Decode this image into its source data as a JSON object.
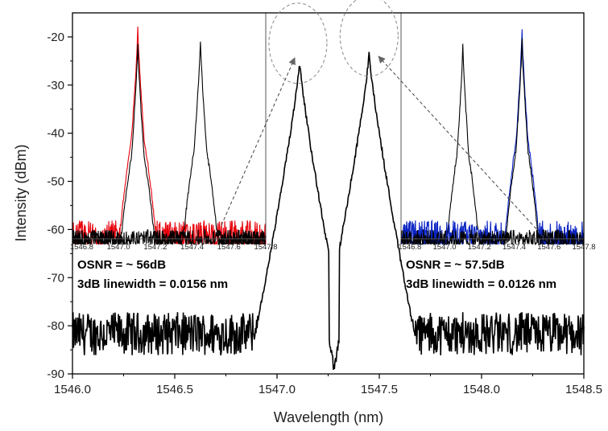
{
  "chart_data": {
    "type": "line",
    "xlabel": "Wavelength (nm)",
    "ylabel": "Intensity (dBm)",
    "xlim": [
      1546.0,
      1548.5
    ],
    "ylim": [
      -90,
      -15
    ],
    "xticks": [
      "1546.0",
      "1546.5",
      "1547.0",
      "1547.5",
      "1548.0",
      "1548.5"
    ],
    "yticks": [
      "-20",
      "-30",
      "-40",
      "-50",
      "-60",
      "-70",
      "-80",
      "-90"
    ],
    "grid": false,
    "noise_floor_dBm": -83,
    "series": [
      {
        "color": "#000000",
        "peaks": [
          {
            "x": 1547.11,
            "y": -25
          },
          {
            "x": 1547.45,
            "y": -23.5
          }
        ],
        "dip": {
          "x": 1547.28,
          "y": -89
        }
      }
    ],
    "insets": [
      {
        "xticks": [
          "1546.8",
          "1547.0",
          "1547.2",
          "1547.4",
          "1547.6",
          "1547.8"
        ],
        "xlim": [
          1546.75,
          1547.8
        ],
        "peaks": [
          {
            "x": 1547.105,
            "y": -18,
            "color": "#e8000b"
          },
          {
            "x": 1547.105,
            "y": -21.5,
            "color": "#000000"
          },
          {
            "x": 1547.445,
            "y": -20.5,
            "color": "#000000"
          }
        ],
        "annotation_lines": [
          "OSNR = ~ 56dB",
          "3dB linewidth = 0.0156 nm"
        ]
      },
      {
        "xticks": [
          "1546.8",
          "1547.0",
          "1547.2",
          "1547.4",
          "1547.6",
          "1547.8"
        ],
        "xlim": [
          1546.75,
          1547.8
        ],
        "peaks": [
          {
            "x": 1547.105,
            "y": -21.5,
            "color": "#000000"
          },
          {
            "x": 1547.445,
            "y": -18.5,
            "color": "#0b24c4"
          },
          {
            "x": 1547.445,
            "y": -20.5,
            "color": "#000000"
          }
        ],
        "annotation_lines": [
          "OSNR = ~ 57.5dB",
          "3dB linewidth = 0.0126 nm"
        ]
      }
    ]
  }
}
